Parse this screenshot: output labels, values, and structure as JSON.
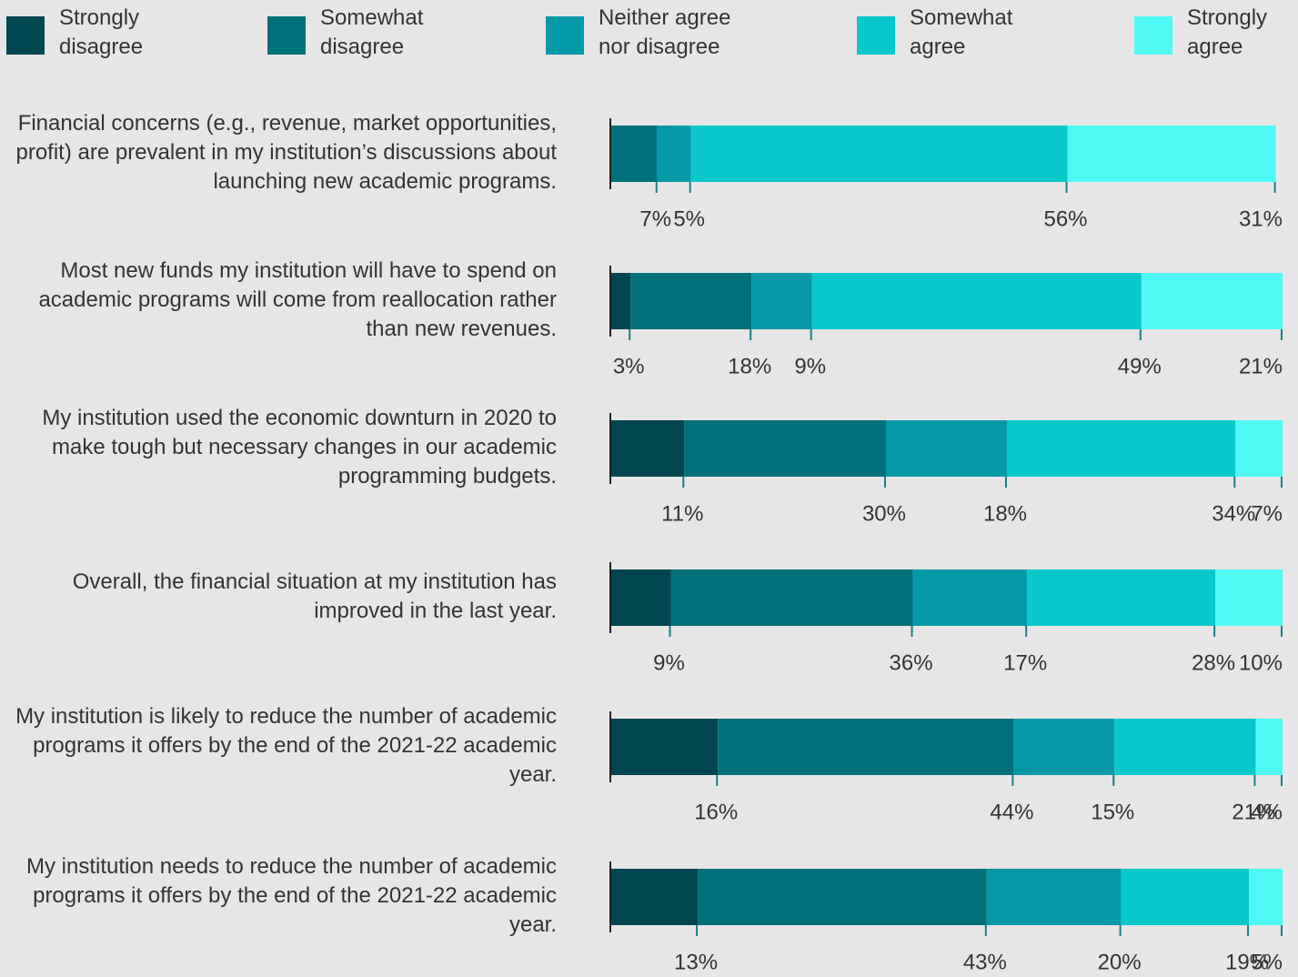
{
  "chart_data": {
    "type": "stacked-bar-horizontal",
    "categories": [
      "Financial concerns (e.g., revenue, market opportunities, profit) are prevalent in my institution’s discussions about launching new academic programs.",
      "Most new funds my institution will have to spend on academic programs will come from reallocation rather than new revenues.",
      "My institution used the economic downturn in 2020 to make tough but necessary changes in our academic programming budgets.",
      "Overall, the financial situation at my institution has improved in the last year.",
      "My institution is likely to reduce the number of academic programs it offers by the end of the 2021-22 academic year.",
      "My institution needs to reduce the number of academic programs it offers by the end of the 2021-22 academic year."
    ],
    "xlim": [
      0,
      100
    ],
    "series": [
      {
        "name": "Strongly disagree",
        "color": "#004651",
        "values": [
          null,
          3,
          11,
          9,
          16,
          13
        ],
        "value_labels": [
          null,
          "3%",
          "11%",
          "9%",
          "16%",
          "13%"
        ]
      },
      {
        "name": "Somewhat disagree",
        "color": "#00707a",
        "values": [
          7,
          18,
          30,
          36,
          44,
          43
        ],
        "value_labels": [
          "7%",
          "18%",
          "30%",
          "36%",
          "44%",
          "43%"
        ]
      },
      {
        "name": "Neither agree nor disagree",
        "color": "#0599a8",
        "values": [
          5,
          9,
          18,
          17,
          15,
          20
        ],
        "value_labels": [
          "5%",
          "9%",
          "18%",
          "17%",
          "15%",
          "20%"
        ]
      },
      {
        "name": "Somewhat agree",
        "color": "#08c8cc",
        "values": [
          56,
          49,
          34,
          28,
          21,
          19
        ],
        "value_labels": [
          "56%",
          "49%",
          "34%",
          "28%",
          "21%",
          "19%"
        ]
      },
      {
        "name": "Strongly agree",
        "color": "#50f8f5",
        "values": [
          31,
          21,
          7,
          10,
          4,
          5
        ],
        "value_labels": [
          "31%",
          "21%",
          "7%",
          "10%",
          "4%",
          "5%"
        ]
      }
    ]
  }
}
